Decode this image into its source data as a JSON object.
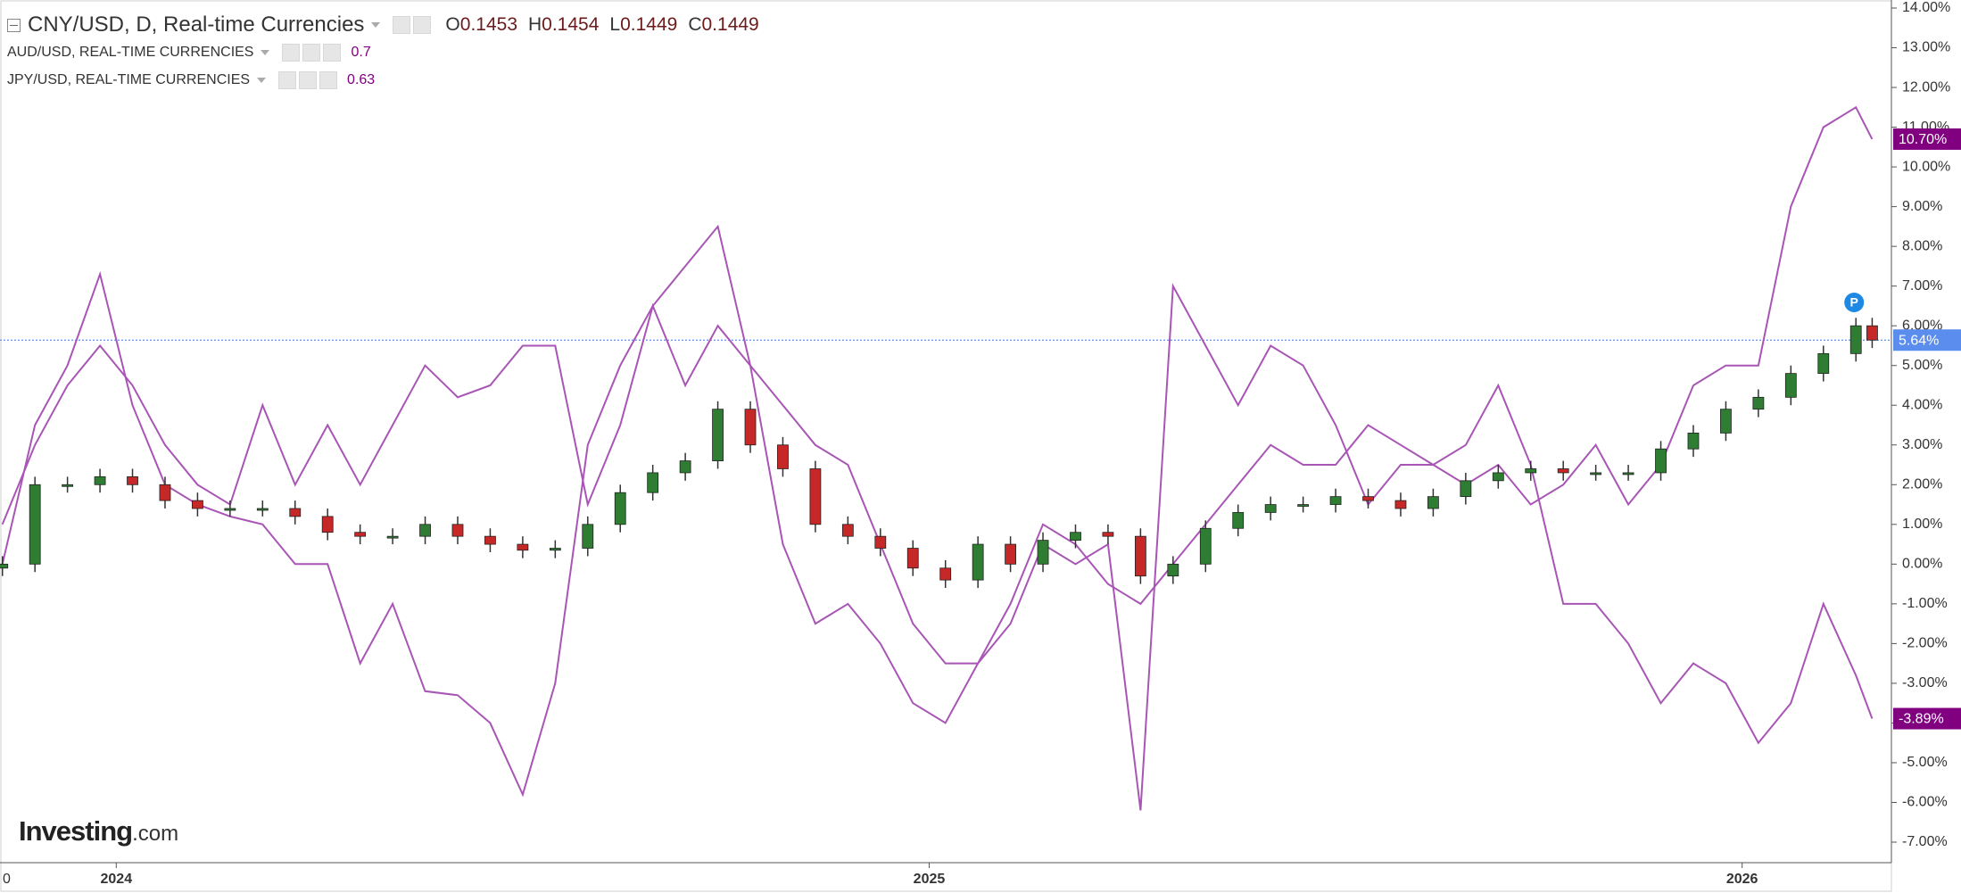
{
  "header": {
    "title": "CNY/USD, D, Real-time Currencies",
    "ohlc": [
      {
        "label": "O",
        "value": 0.1453
      },
      {
        "label": "H",
        "value": 0.1454
      },
      {
        "label": "L",
        "value": 0.1449
      },
      {
        "label": "C",
        "value": 0.1449
      }
    ],
    "studies": [
      {
        "name": "AUD/USD, REAL-TIME CURRENCIES",
        "value": 0.7
      },
      {
        "name": "JPY/USD, REAL-TIME CURRENCIES",
        "value": 0.63
      }
    ]
  },
  "watermark": {
    "brand": "Investing",
    "suffix": ".com"
  },
  "chart_data": {
    "type": "candlestick",
    "x_axis_left_label": "0",
    "xlim": [
      2023.857,
      2026.165
    ],
    "xticks": [
      2024,
      2025,
      2026
    ],
    "ylim": [
      -7.2,
      14.2
    ],
    "yticks": [
      {
        "value": 14,
        "label": "14.00%"
      },
      {
        "value": 13,
        "label": "13.00%"
      },
      {
        "value": 12,
        "label": "12.00%"
      },
      {
        "value": 11,
        "label": "11.00%"
      },
      {
        "value": 10,
        "label": "10.00%"
      },
      {
        "value": 9,
        "label": "9.00%"
      },
      {
        "value": 8,
        "label": "8.00%"
      },
      {
        "value": 7,
        "label": "7.00%"
      },
      {
        "value": 6,
        "label": "6.00%"
      },
      {
        "value": 5,
        "label": "5.00%"
      },
      {
        "value": 4,
        "label": "4.00%"
      },
      {
        "value": 3,
        "label": "3.00%"
      },
      {
        "value": 2,
        "label": "2.00%"
      },
      {
        "value": 1,
        "label": "1.00%"
      },
      {
        "value": 0,
        "label": "0.00%"
      },
      {
        "value": -1,
        "label": "-1.00%"
      },
      {
        "value": -2,
        "label": "-2.00%"
      },
      {
        "value": -3,
        "label": "-3.00%"
      },
      {
        "value": -4,
        "label": "-4.00%"
      },
      {
        "value": -5,
        "label": "-5.00%"
      },
      {
        "value": -6,
        "label": "-6.00%"
      },
      {
        "value": -7,
        "label": "-7.00%"
      }
    ],
    "x": [
      2023.86,
      2023.9,
      2023.94,
      2023.98,
      2024.02,
      2024.06,
      2024.1,
      2024.14,
      2024.18,
      2024.22,
      2024.26,
      2024.3,
      2024.34,
      2024.38,
      2024.42,
      2024.46,
      2024.5,
      2024.54,
      2024.58,
      2024.62,
      2024.66,
      2024.7,
      2024.74,
      2024.78,
      2024.82,
      2024.86,
      2024.9,
      2024.94,
      2024.98,
      2025.02,
      2025.06,
      2025.1,
      2025.14,
      2025.18,
      2025.22,
      2025.26,
      2025.3,
      2025.34,
      2025.38,
      2025.42,
      2025.46,
      2025.5,
      2025.54,
      2025.58,
      2025.62,
      2025.66,
      2025.7,
      2025.74,
      2025.78,
      2025.82,
      2025.86,
      2025.9,
      2025.94,
      2025.98,
      2026.02,
      2026.06,
      2026.1,
      2026.14,
      2026.16
    ],
    "candles": {
      "up_color": "#2e7d32",
      "down_color": "#c62828",
      "open": [
        -0.1,
        0,
        2,
        2,
        2.2,
        2,
        1.6,
        1.4,
        1.4,
        1.4,
        1.2,
        0.8,
        0.7,
        0.7,
        1,
        0.7,
        0.5,
        0.35,
        0.4,
        1,
        1.8,
        2.3,
        2.6,
        3.9,
        3,
        2.4,
        1,
        0.7,
        0.4,
        -0.1,
        -0.4,
        0.5,
        0,
        0.6,
        0.8,
        0.7,
        -0.3,
        0,
        0.9,
        1.3,
        1.5,
        1.5,
        1.7,
        1.6,
        1.4,
        1.7,
        2.1,
        2.3,
        2.4,
        2.3,
        2.3,
        2.3,
        2.9,
        3.3,
        3.9,
        4.2,
        4.8,
        5.3,
        6
      ],
      "high": [
        0.2,
        2.2,
        2.2,
        2.4,
        2.4,
        2.2,
        1.8,
        1.6,
        1.6,
        1.6,
        1.4,
        1,
        0.9,
        1.2,
        1.2,
        0.9,
        0.7,
        0.6,
        1.2,
        2,
        2.5,
        2.8,
        4.1,
        4.1,
        3.2,
        2.6,
        1.2,
        0.9,
        0.6,
        0.1,
        0.7,
        0.7,
        0.8,
        1,
        1,
        0.9,
        0.2,
        1.1,
        1.5,
        1.7,
        1.7,
        1.9,
        1.9,
        1.8,
        1.9,
        2.3,
        2.5,
        2.6,
        2.6,
        2.5,
        2.5,
        3.1,
        3.5,
        4.1,
        4.4,
        5,
        5.5,
        6.2,
        6.2
      ],
      "low": [
        -0.3,
        -0.2,
        1.8,
        1.8,
        1.8,
        1.4,
        1.2,
        1.2,
        1.2,
        1,
        0.6,
        0.5,
        0.5,
        0.5,
        0.5,
        0.3,
        0.15,
        0.15,
        0.2,
        0.8,
        1.6,
        2.1,
        2.4,
        2.8,
        2.2,
        0.8,
        0.5,
        0.2,
        -0.3,
        -0.6,
        -0.6,
        -0.2,
        -0.2,
        0.4,
        0.5,
        -0.5,
        -0.5,
        -0.2,
        0.7,
        1.1,
        1.3,
        1.3,
        1.4,
        1.2,
        1.2,
        1.5,
        1.9,
        2.1,
        2.1,
        2.1,
        2.1,
        2.1,
        2.7,
        3.1,
        3.7,
        4,
        4.6,
        5.1,
        5.44
      ],
      "close": [
        0,
        2,
        2,
        2.2,
        2,
        1.6,
        1.4,
        1.4,
        1.4,
        1.2,
        0.8,
        0.7,
        0.7,
        1,
        0.7,
        0.5,
        0.35,
        0.4,
        1,
        1.8,
        2.3,
        2.6,
        3.9,
        3,
        2.4,
        1,
        0.7,
        0.4,
        -0.1,
        -0.4,
        0.5,
        0,
        0.6,
        0.8,
        0.7,
        -0.3,
        0,
        0.9,
        1.3,
        1.5,
        1.5,
        1.7,
        1.6,
        1.4,
        1.7,
        2.1,
        2.3,
        2.4,
        2.3,
        2.3,
        2.3,
        2.9,
        3.3,
        3.9,
        4.2,
        4.8,
        5.3,
        6,
        5.64
      ]
    },
    "price_line": {
      "value": 5.64,
      "label": "5.64%",
      "color": "#5b8def"
    },
    "marker_label": "P",
    "series": [
      {
        "name": "AUD/USD",
        "color": "#a855b5",
        "label_color": "#800080",
        "last_label": {
          "value": 10.7,
          "label": "10.70%"
        },
        "values": [
          1,
          3,
          4.5,
          5.5,
          4.5,
          3,
          2,
          1.5,
          4,
          2,
          3.5,
          2,
          3.5,
          5,
          4.2,
          4.5,
          5.5,
          5.5,
          1.5,
          3.5,
          6.5,
          4.5,
          6,
          5,
          4,
          3,
          2.5,
          0.5,
          -1.5,
          -2.5,
          -2.5,
          -1,
          1,
          0.5,
          -0.5,
          -1,
          0,
          1,
          2,
          3,
          2.5,
          2.5,
          3.5,
          3,
          2.5,
          2,
          2.5,
          1.5,
          2,
          3,
          1.5,
          2.5,
          4.5,
          5,
          5,
          9,
          11,
          11.5,
          10.7
        ]
      },
      {
        "name": "JPY/USD",
        "color": "#a855b5",
        "label_color": "#800080",
        "last_label": {
          "value": -3.89,
          "label": "-3.89%"
        },
        "values": [
          0,
          3.5,
          5,
          7.3,
          4,
          2,
          1.5,
          1.2,
          1,
          0,
          0,
          -2.5,
          -1,
          -3.2,
          -3.3,
          -4,
          -5.8,
          -3,
          3,
          5,
          6.5,
          7.5,
          8.5,
          5,
          0.5,
          -1.5,
          -1,
          -2,
          -3.5,
          -4,
          -2.5,
          -1.5,
          0.5,
          0,
          0.5,
          -6.2,
          7,
          5.5,
          4,
          5.5,
          5,
          3.5,
          1.5,
          2.5,
          2.5,
          3,
          4.5,
          2.5,
          -1,
          -1,
          -2,
          -3.5,
          -2.5,
          -3,
          -4.5,
          -3.5,
          -1,
          -2.8,
          -3.89
        ]
      }
    ]
  }
}
